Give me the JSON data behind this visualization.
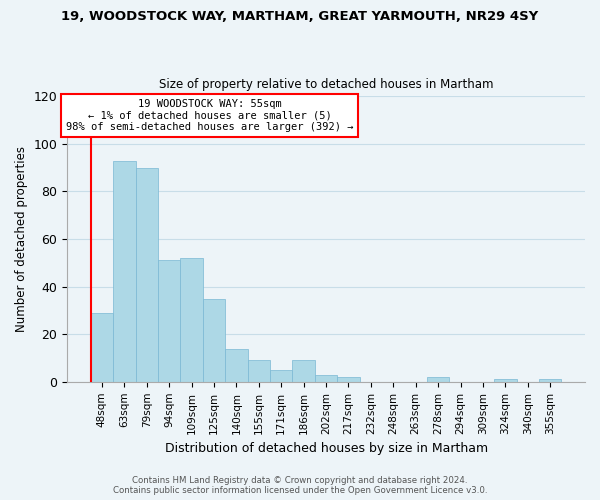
{
  "title": "19, WOODSTOCK WAY, MARTHAM, GREAT YARMOUTH, NR29 4SY",
  "subtitle": "Size of property relative to detached houses in Martham",
  "xlabel": "Distribution of detached houses by size in Martham",
  "ylabel": "Number of detached properties",
  "footer_line1": "Contains HM Land Registry data © Crown copyright and database right 2024.",
  "footer_line2": "Contains public sector information licensed under the Open Government Licence v3.0.",
  "categories": [
    "48sqm",
    "63sqm",
    "79sqm",
    "94sqm",
    "109sqm",
    "125sqm",
    "140sqm",
    "155sqm",
    "171sqm",
    "186sqm",
    "202sqm",
    "217sqm",
    "232sqm",
    "248sqm",
    "263sqm",
    "278sqm",
    "294sqm",
    "309sqm",
    "324sqm",
    "340sqm",
    "355sqm"
  ],
  "values": [
    29,
    93,
    90,
    51,
    52,
    35,
    14,
    9,
    5,
    9,
    3,
    2,
    0,
    0,
    0,
    2,
    0,
    0,
    1,
    0,
    1
  ],
  "bar_color": "#add8e6",
  "bar_edge_color": "#7ab8d4",
  "highlight_bar_edge_color": "red",
  "ylim": [
    0,
    120
  ],
  "yticks": [
    0,
    20,
    40,
    60,
    80,
    100,
    120
  ],
  "annotation_line1": "19 WOODSTOCK WAY: 55sqm",
  "annotation_line2": "← 1% of detached houses are smaller (5)",
  "annotation_line3": "98% of semi-detached houses are larger (392) →",
  "grid_color": "#c8dde8",
  "background_color": "#edf4f8"
}
